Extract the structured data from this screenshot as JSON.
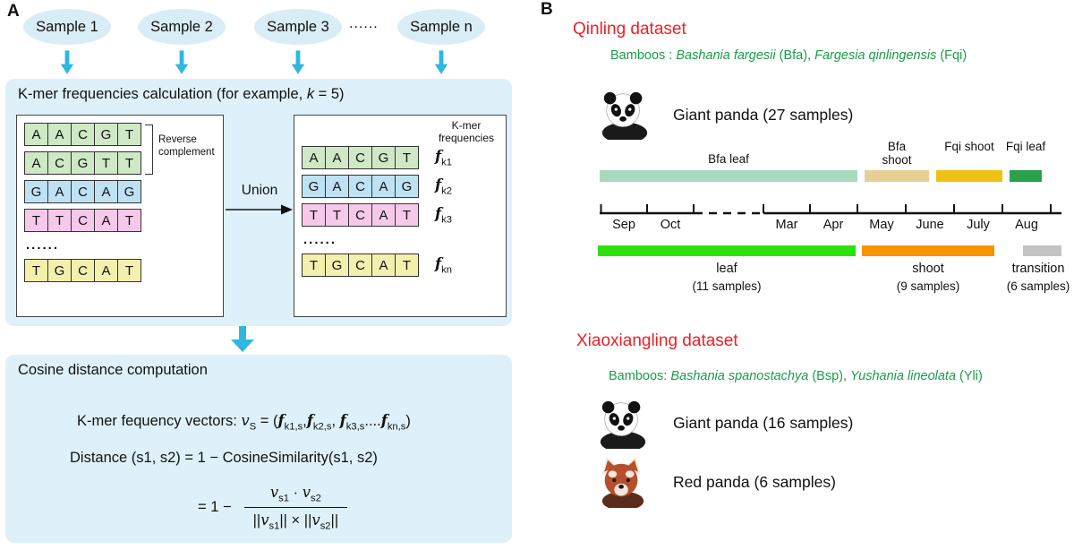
{
  "panel_a": {
    "label": "A",
    "samples": [
      {
        "label": "Sample 1"
      },
      {
        "label": "Sample 2"
      },
      {
        "label": "Sample 3"
      },
      {
        "label": "Sample n"
      }
    ],
    "samples_ellipsis": "......",
    "colors": {
      "green": "#cfe8c5",
      "blue": "#bfe1f4",
      "pink": "#f6c9ea",
      "yellow": "#f3efad",
      "arrow": "#2fb7e0",
      "box_bg": "#def1fa",
      "oval_bg": "#d9edf7"
    },
    "kmer_box": {
      "title": [
        {
          "t": "K-mer frequencies calculation (for example, "
        },
        {
          "t": "k",
          "i": true
        },
        {
          "t": " = 5)"
        }
      ],
      "left_rows": [
        {
          "letters": "AACGT",
          "color": "green"
        },
        {
          "letters": "ACGTT",
          "color": "green"
        },
        {
          "letters": "GACAG",
          "color": "blue"
        },
        {
          "letters": "TTCAT",
          "color": "pink"
        },
        {
          "ellipsis": "......"
        },
        {
          "letters": "TGCAT",
          "color": "yellow"
        }
      ],
      "reverse_complement": "Reverse complement",
      "union_label": "Union",
      "right_header": "K-mer frequencies",
      "right_rows": [
        {
          "letters": "AACGT",
          "color": "green",
          "freq": [
            {
              "t": "f",
              "fi": true
            },
            {
              "t": "k1",
              "sub": true
            }
          ]
        },
        {
          "letters": "GACAG",
          "color": "blue",
          "freq": [
            {
              "t": "f",
              "fi": true
            },
            {
              "t": "k2",
              "sub": true
            }
          ]
        },
        {
          "letters": "TTCAT",
          "color": "pink",
          "freq": [
            {
              "t": "f",
              "fi": true
            },
            {
              "t": "k3",
              "sub": true
            }
          ]
        },
        {
          "ellipsis": "......"
        },
        {
          "letters": "TGCAT",
          "color": "yellow",
          "freq": [
            {
              "t": "f",
              "fi": true
            },
            {
              "t": "kn",
              "sub": true
            }
          ]
        }
      ]
    },
    "cosine_box": {
      "title": "Cosine distance computation",
      "vector_line": [
        {
          "t": "K-mer fequency vectors: "
        },
        {
          "t": "v",
          "mi": true
        },
        {
          "t": "S",
          "sub": true
        },
        {
          "t": " = ("
        },
        {
          "t": "f",
          "fi": true
        },
        {
          "t": "k1,s",
          "sub": true
        },
        {
          "t": ","
        },
        {
          "t": "f",
          "fi": true
        },
        {
          "t": "k2,s",
          "sub": true
        },
        {
          "t": ", "
        },
        {
          "t": "f",
          "fi": true
        },
        {
          "t": "k3,s",
          "sub": true
        },
        {
          "t": "...."
        },
        {
          "t": "f",
          "fi": true
        },
        {
          "t": "kn,s",
          "sub": true
        },
        {
          "t": ")"
        }
      ],
      "distance_line": "Distance (s1, s2) = 1 − CosineSimilarity(s1, s2)",
      "fraction_prefix": "= 1 −",
      "numerator": [
        {
          "t": "v",
          "mi": true
        },
        {
          "t": "s1",
          "sub": true
        },
        {
          "t": " · "
        },
        {
          "t": "v",
          "mi": true
        },
        {
          "t": "s2",
          "sub": true
        }
      ],
      "denominator": [
        {
          "t": "||"
        },
        {
          "t": "v",
          "mi": true
        },
        {
          "t": "s1",
          "sub": true
        },
        {
          "t": "||"
        },
        {
          "t": " × "
        },
        {
          "t": "||"
        },
        {
          "t": "v",
          "mi": true
        },
        {
          "t": "s2",
          "sub": true
        },
        {
          "t": "||"
        }
      ]
    }
  },
  "panel_b": {
    "label": "B",
    "text_colors": {
      "heading": "#ed2024",
      "bamboo": "#1a9c47"
    },
    "qinling": {
      "title": "Qinling dataset",
      "bamboos": [
        {
          "t": "Bamboos : "
        },
        {
          "t": "Bashania fargesii",
          "i": true
        },
        {
          "t": " (Bfa), "
        },
        {
          "t": "Fargesia qinlingensis",
          "i": true
        },
        {
          "t": " (Fqi)"
        }
      ],
      "panda_line": "Giant panda (27 samples)",
      "bamboo_bars": [
        {
          "label": "Bfa leaf",
          "color": "#a9d8bf"
        },
        {
          "label": "Bfa shoot",
          "color": "#e6d096"
        },
        {
          "label": "Fqi shoot",
          "color": "#eec214"
        },
        {
          "label": "Fqi leaf",
          "color": "#2aa24c"
        }
      ],
      "months": [
        "Sep",
        "Oct",
        "Mar",
        "Apr",
        "May",
        "June",
        "July",
        "Aug"
      ],
      "phase_bars": [
        {
          "label": "leaf",
          "samples": "(11 samples)",
          "color": "#2ce10c"
        },
        {
          "label": "shoot",
          "samples": "(9 samples)",
          "color": "#f79400"
        },
        {
          "label": "transition",
          "samples": "(6 samples)",
          "color": "#c3c3c3"
        }
      ]
    },
    "xiaoxiangling": {
      "title": "Xiaoxiangling dataset",
      "bamboos": [
        {
          "t": "Bamboos: "
        },
        {
          "t": "Bashania spanostachya",
          "i": true
        },
        {
          "t": " (Bsp), "
        },
        {
          "t": "Yushania lineolata",
          "i": true
        },
        {
          "t": " (Yli)"
        }
      ],
      "giant_panda_line": "Giant panda (16 samples)",
      "red_panda_line": "Red panda (6 samples)"
    }
  }
}
